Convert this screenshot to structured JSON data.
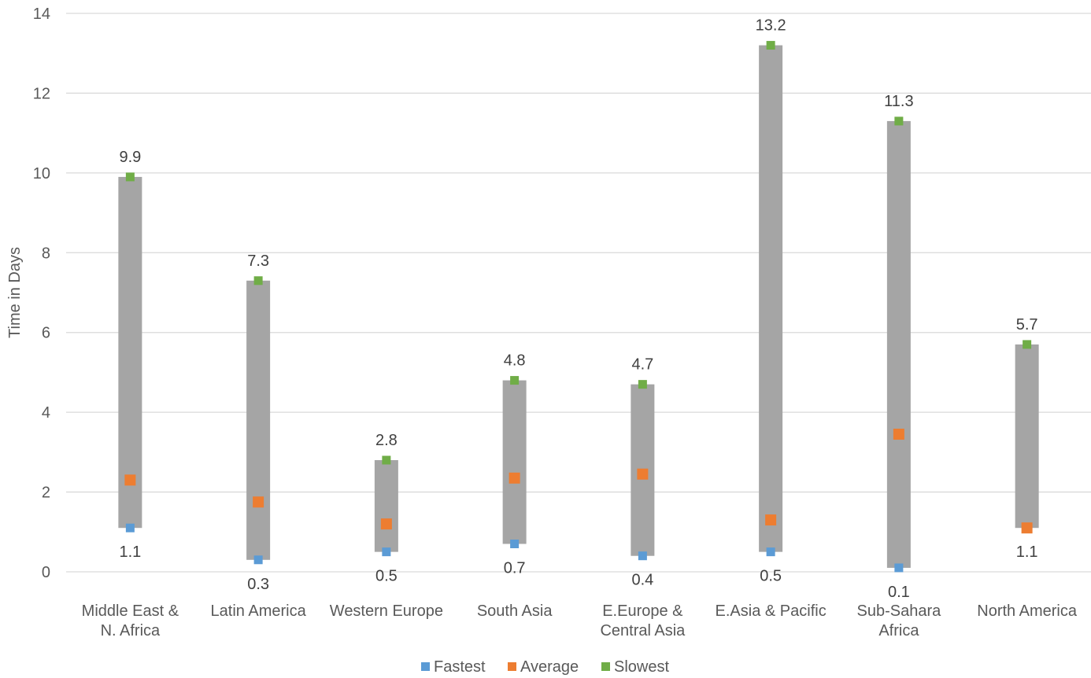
{
  "chart_data": {
    "type": "high-low range with markers",
    "title": "",
    "xlabel": "",
    "ylabel": "Time in Days",
    "ylim": [
      0,
      14
    ],
    "yticks": [
      "0",
      "2",
      "4",
      "6",
      "8",
      "10",
      "12",
      "14"
    ],
    "grid": true,
    "legend_position": "bottom",
    "categories": [
      [
        "Middle East &",
        "N. Africa"
      ],
      [
        "Latin America"
      ],
      [
        "Western Europe"
      ],
      [
        "South Asia"
      ],
      [
        "E.Europe &",
        "Central Asia"
      ],
      [
        "E.Asia & Pacific"
      ],
      [
        "Sub-Sahara",
        "Africa"
      ],
      [
        "North America"
      ]
    ],
    "series": [
      {
        "name": "Fastest",
        "color": "#5B9BD5",
        "values": [
          1.1,
          0.3,
          0.5,
          0.7,
          0.4,
          0.5,
          0.1,
          1.1
        ]
      },
      {
        "name": "Average",
        "color": "#ED7D31",
        "values": [
          2.3,
          1.75,
          1.2,
          2.35,
          2.45,
          1.3,
          3.45,
          1.1
        ]
      },
      {
        "name": "Slowest",
        "color": "#70AD47",
        "values": [
          9.9,
          7.3,
          2.8,
          4.8,
          4.7,
          13.2,
          11.3,
          5.7
        ]
      }
    ],
    "low_labels": [
      "1.1",
      "0.3",
      "0.5",
      "0.7",
      "0.4",
      "0.5",
      "0.1",
      "1.1"
    ],
    "high_labels": [
      "9.9",
      "7.3",
      "2.8",
      "4.8",
      "4.7",
      "13.2",
      "11.3",
      "5.7"
    ],
    "range_bar_color": "#A5A5A5",
    "gridline_color": "#D9D9D9"
  }
}
